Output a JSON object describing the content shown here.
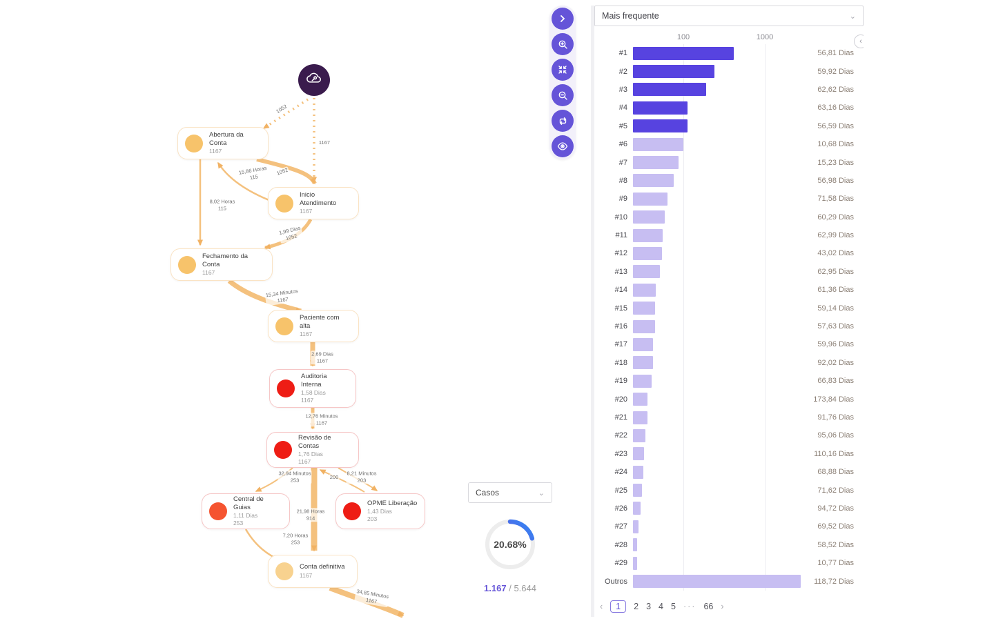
{
  "flow": {
    "start_node": {
      "icon": "process-start-cloud-icon"
    },
    "nodes": [
      {
        "title": "Abertura da Conta",
        "count": "1167",
        "color": "#f7c36b"
      },
      {
        "title": "Inicio Atendimento",
        "count": "1167",
        "color": "#f7c36b"
      },
      {
        "title": "Fechamento da Conta",
        "count": "1167",
        "color": "#f7c36b"
      },
      {
        "title": "Paciente com alta",
        "count": "1167",
        "color": "#f7c36b"
      },
      {
        "title": "Auditoria Interna",
        "duration": "1,58 Dias",
        "count": "1167",
        "color": "#ee1d15"
      },
      {
        "title": "Revisão de Contas",
        "duration": "1,76 Dias",
        "count": "1167",
        "color": "#ee1d15"
      },
      {
        "title": "Central de Guias",
        "duration": "1,11 Dias",
        "count": "253",
        "color": "#f55430"
      },
      {
        "title": "OPME Liberação",
        "duration": "1,43 Dias",
        "count": "203",
        "color": "#ee1d15"
      },
      {
        "title": "Conta definitiva",
        "count": "1167",
        "color": "#f8d28f"
      }
    ],
    "edges": [
      {
        "line1": "1052",
        "line2": ""
      },
      {
        "line1": "1167",
        "line2": ""
      },
      {
        "line1": "15,86 Horas",
        "line2": "115"
      },
      {
        "line1": "1052",
        "line2": ""
      },
      {
        "line1": "8,02 Horas",
        "line2": "115"
      },
      {
        "line1": "1,99 Dias",
        "line2": "1052"
      },
      {
        "line1": "15,34 Minutos",
        "line2": "1167"
      },
      {
        "line1": "2,69 Dias",
        "line2": "1167"
      },
      {
        "line1": "12,76 Minutos",
        "line2": "1167"
      },
      {
        "line1": "32,94 Minutos",
        "line2": "253"
      },
      {
        "line1": "200",
        "line2": ""
      },
      {
        "line1": "8,21 Minutos",
        "line2": "203"
      },
      {
        "line1": "21,98 Horas",
        "line2": "914"
      },
      {
        "line1": "7,20 Horas",
        "line2": "253"
      },
      {
        "line1": "34,85 Minutos",
        "line2": "1167"
      }
    ],
    "edge_color": "#f3ba70"
  },
  "toolbar": {
    "accent_color": "#6554d8",
    "buttons": [
      "chevron-right",
      "zoom-in",
      "fit-view",
      "zoom-out",
      "repeat",
      "eye"
    ]
  },
  "cases_widget": {
    "select_label": "Casos",
    "percent": "20.68%",
    "current": "1.167",
    "separator": "/",
    "total": "5.644"
  },
  "variants_panel": {
    "sort_select_label": "Mais frequente"
  },
  "chart_data": {
    "type": "bar",
    "orientation": "horizontal",
    "x_scale": "log",
    "x_tick_labels": [
      "100",
      "1000"
    ],
    "xlim": [
      24,
      4000
    ],
    "title": "",
    "xlabel": "",
    "ylabel": "",
    "legend": "none",
    "grid": "vertical",
    "categories": [
      "#1",
      "#2",
      "#3",
      "#4",
      "#5",
      "#6",
      "#7",
      "#8",
      "#9",
      "#10",
      "#11",
      "#12",
      "#13",
      "#14",
      "#15",
      "#16",
      "#17",
      "#18",
      "#19",
      "#20",
      "#21",
      "#22",
      "#23",
      "#24",
      "#25",
      "#26",
      "#27",
      "#28",
      "#29",
      "Outros"
    ],
    "case_counts_estimated": [
      415,
      240,
      190,
      112,
      112,
      100,
      87,
      76,
      64,
      59,
      56,
      55,
      51,
      46,
      45,
      45,
      42,
      42,
      41,
      36,
      36,
      34,
      33,
      32,
      31,
      30,
      28,
      27,
      27,
      2750
    ],
    "duration_labels": [
      "56,81 Dias",
      "59,92 Dias",
      "62,62 Dias",
      "63,16 Dias",
      "56,59 Dias",
      "10,68 Dias",
      "15,23 Dias",
      "56,98 Dias",
      "71,58 Dias",
      "60,29 Dias",
      "62,99 Dias",
      "43,02 Dias",
      "62,95 Dias",
      "61,36 Dias",
      "59,14 Dias",
      "57,63 Dias",
      "59,96 Dias",
      "92,02 Dias",
      "66,83 Dias",
      "173,84 Dias",
      "91,76 Dias",
      "95,06 Dias",
      "110,16 Dias",
      "68,88 Dias",
      "71,62 Dias",
      "94,72 Dias",
      "69,52 Dias",
      "58,52 Dias",
      "10,77 Dias",
      "118,72 Dias"
    ],
    "highlighted_count": 5,
    "colors": {
      "highlight": "#5743e0",
      "normal": "#c7bef2"
    }
  },
  "pagination": {
    "prev": "‹",
    "pages": [
      "1",
      "2",
      "3",
      "4",
      "5",
      "···",
      "66"
    ],
    "next": "›",
    "active_page": "1"
  }
}
